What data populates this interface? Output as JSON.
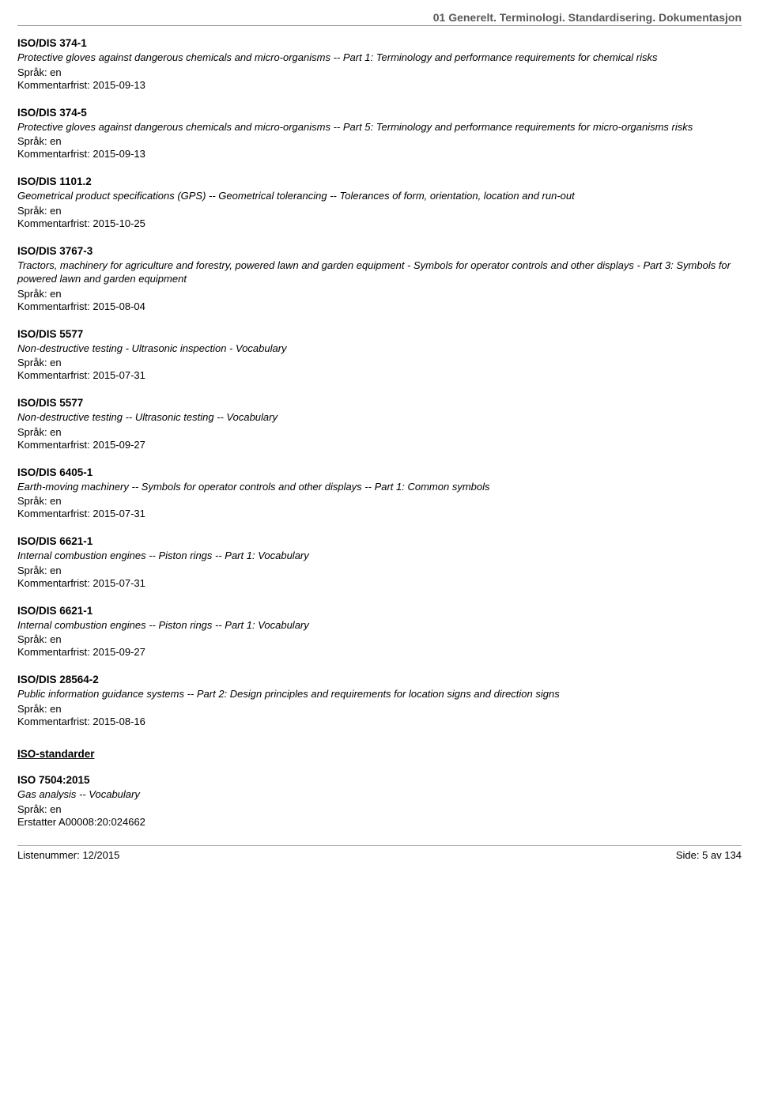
{
  "header": "01  Generelt. Terminologi. Standardisering. Dokumentasjon",
  "entries": [
    {
      "code": "ISO/DIS 374-1",
      "desc": "Protective gloves against dangerous chemicals and micro-organisms -- Part 1: Terminology and performance requirements for chemical risks",
      "lang": "Språk: en",
      "deadline": "Kommentarfrist: 2015-09-13"
    },
    {
      "code": "ISO/DIS 374-5",
      "desc": "Protective gloves against dangerous chemicals and micro-organisms -- Part 5: Terminology and performance requirements for micro-organisms risks",
      "lang": "Språk: en",
      "deadline": "Kommentarfrist: 2015-09-13"
    },
    {
      "code": "ISO/DIS 1101.2",
      "desc": "Geometrical product specifications (GPS) -- Geometrical tolerancing -- Tolerances of form, orientation, location and run-out",
      "lang": "Språk: en",
      "deadline": "Kommentarfrist: 2015-10-25"
    },
    {
      "code": "ISO/DIS 3767-3",
      "desc": "Tractors, machinery for agriculture and forestry, powered lawn and garden equipment - Symbols for operator controls and other displays - Part 3: Symbols for powered lawn and garden equipment",
      "lang": "Språk: en",
      "deadline": "Kommentarfrist: 2015-08-04"
    },
    {
      "code": "ISO/DIS 5577",
      "desc": "Non-destructive testing - Ultrasonic inspection - Vocabulary",
      "lang": "Språk: en",
      "deadline": "Kommentarfrist: 2015-07-31"
    },
    {
      "code": "ISO/DIS 5577",
      "desc": "Non-destructive testing -- Ultrasonic testing -- Vocabulary",
      "lang": "Språk: en",
      "deadline": "Kommentarfrist: 2015-09-27"
    },
    {
      "code": "ISO/DIS 6405-1",
      "desc": "Earth-moving machinery -- Symbols for operator controls and other displays -- Part 1: Common symbols",
      "lang": "Språk: en",
      "deadline": "Kommentarfrist: 2015-07-31"
    },
    {
      "code": "ISO/DIS 6621-1",
      "desc": "Internal combustion engines -- Piston rings -- Part 1: Vocabulary",
      "lang": "Språk: en",
      "deadline": "Kommentarfrist: 2015-07-31"
    },
    {
      "code": "ISO/DIS 6621-1",
      "desc": "Internal combustion engines -- Piston rings -- Part 1: Vocabulary",
      "lang": "Språk: en",
      "deadline": "Kommentarfrist: 2015-09-27"
    },
    {
      "code": "ISO/DIS 28564-2",
      "desc": "Public information guidance systems -- Part 2: Design principles and requirements for location signs and direction signs",
      "lang": "Språk: en",
      "deadline": "Kommentarfrist: 2015-08-16"
    }
  ],
  "section_title": "ISO-standarder",
  "iso_entry": {
    "code": "ISO 7504:2015",
    "desc": "Gas analysis -- Vocabulary",
    "lang": "Språk: en",
    "replaces": "Erstatter A00008:20:024662"
  },
  "footer": {
    "left": "Listenummer: 12/2015",
    "right": "Side: 5 av 134"
  }
}
